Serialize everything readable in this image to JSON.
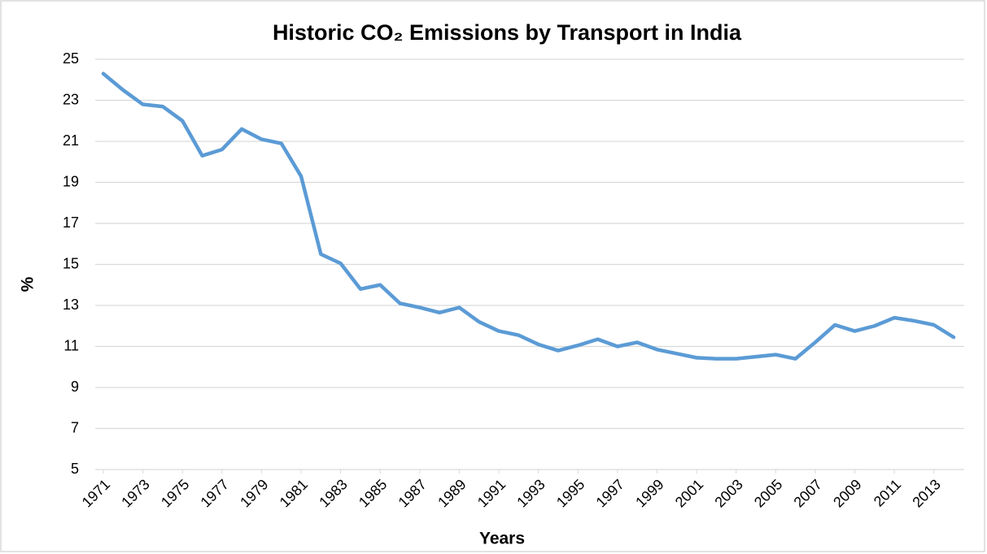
{
  "chart_data": {
    "type": "line",
    "title": "Historic CO₂ Emissions by Transport in India",
    "x_label": "Years",
    "y_label": "%",
    "x": [
      1971,
      1972,
      1973,
      1974,
      1975,
      1976,
      1977,
      1978,
      1979,
      1980,
      1981,
      1982,
      1983,
      1984,
      1985,
      1986,
      1987,
      1988,
      1989,
      1990,
      1991,
      1992,
      1993,
      1994,
      1995,
      1996,
      1997,
      1998,
      1999,
      2000,
      2001,
      2002,
      2003,
      2004,
      2005,
      2006,
      2007,
      2008,
      2009,
      2010,
      2011,
      2012,
      2013,
      2014
    ],
    "xlim": [
      1971,
      2014
    ],
    "xticks": [
      1971,
      1973,
      1975,
      1977,
      1979,
      1981,
      1983,
      1985,
      1987,
      1989,
      1991,
      1993,
      1995,
      1997,
      1999,
      2001,
      2003,
      2005,
      2007,
      2009,
      2011,
      2013
    ],
    "series": [
      {
        "name": "CO₂ Emissions by Transport",
        "color": "#5b9bd5",
        "values": [
          24.3,
          23.5,
          22.8,
          22.7,
          22.0,
          20.3,
          20.6,
          21.6,
          21.1,
          20.9,
          19.3,
          15.5,
          15.05,
          13.8,
          14.0,
          13.1,
          12.9,
          12.65,
          12.9,
          12.2,
          11.75,
          11.55,
          11.1,
          10.8,
          11.05,
          11.35,
          11.0,
          11.2,
          10.85,
          10.65,
          10.45,
          10.4,
          10.4,
          10.5,
          10.6,
          10.4,
          11.2,
          12.05,
          11.75,
          12.0,
          12.4,
          12.25,
          12.05,
          11.45
        ]
      }
    ],
    "ylim": [
      5,
      25
    ],
    "yticks": [
      5,
      7,
      9,
      11,
      13,
      15,
      17,
      19,
      21,
      23,
      25
    ],
    "grid": true
  }
}
